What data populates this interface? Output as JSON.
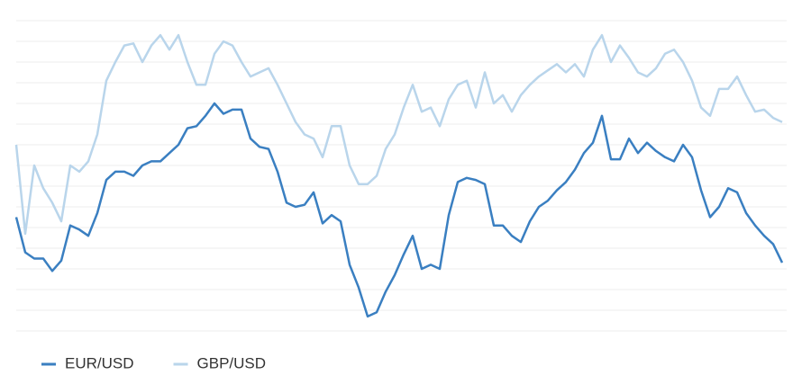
{
  "chart_data": {
    "type": "line",
    "ylim": [
      0,
      15
    ],
    "yticks": [
      0,
      1,
      2,
      3,
      4,
      5,
      6,
      7,
      8,
      9,
      10,
      11,
      12,
      13,
      14,
      15
    ],
    "grid": true,
    "legend": "bottom-left",
    "series": [
      {
        "name": "EUR/USD",
        "color": "#3a7fc1",
        "values": [
          5.5,
          3.8,
          3.5,
          3.5,
          2.9,
          3.4,
          5.1,
          4.9,
          4.6,
          5.7,
          7.3,
          7.7,
          7.7,
          7.5,
          8.0,
          8.2,
          8.2,
          8.6,
          9.0,
          9.8,
          9.9,
          10.4,
          11.0,
          10.5,
          10.7,
          10.7,
          9.3,
          8.9,
          8.8,
          7.7,
          6.2,
          6.0,
          6.1,
          6.7,
          5.2,
          5.6,
          5.3,
          3.2,
          2.1,
          0.7,
          0.9,
          1.9,
          2.7,
          3.7,
          4.6,
          3.0,
          3.2,
          3.0,
          5.6,
          7.2,
          7.4,
          7.3,
          7.1,
          5.1,
          5.1,
          4.6,
          4.3,
          5.3,
          6.0,
          6.3,
          6.8,
          7.2,
          7.8,
          8.6,
          9.1,
          10.4,
          8.3,
          8.3,
          9.3,
          8.6,
          9.1,
          8.7,
          8.4,
          8.2,
          9.0,
          8.4,
          6.8,
          5.5,
          6.0,
          6.9,
          6.7,
          5.7,
          5.1,
          4.6,
          4.2,
          3.3
        ]
      },
      {
        "name": "GBP/USD",
        "color": "#b9d5eb",
        "values": [
          9.0,
          4.7,
          8.0,
          6.9,
          6.2,
          5.3,
          8.0,
          7.7,
          8.2,
          9.5,
          12.1,
          13.0,
          13.8,
          13.9,
          13.0,
          13.8,
          14.3,
          13.6,
          14.3,
          13.0,
          11.9,
          11.9,
          13.4,
          14.0,
          13.8,
          13.0,
          12.3,
          12.5,
          12.7,
          11.9,
          11.0,
          10.1,
          9.5,
          9.3,
          8.4,
          9.9,
          9.9,
          8.0,
          7.1,
          7.1,
          7.5,
          8.8,
          9.5,
          10.8,
          11.9,
          10.6,
          10.8,
          9.9,
          11.2,
          11.9,
          12.1,
          10.8,
          12.5,
          11.0,
          11.4,
          10.6,
          11.4,
          11.9,
          12.3,
          12.6,
          12.9,
          12.5,
          12.9,
          12.3,
          13.6,
          14.3,
          13.0,
          13.8,
          13.2,
          12.5,
          12.3,
          12.7,
          13.4,
          13.6,
          13.0,
          12.1,
          10.8,
          10.4,
          11.7,
          11.7,
          12.3,
          11.4,
          10.6,
          10.7,
          10.3,
          10.1
        ]
      }
    ]
  }
}
